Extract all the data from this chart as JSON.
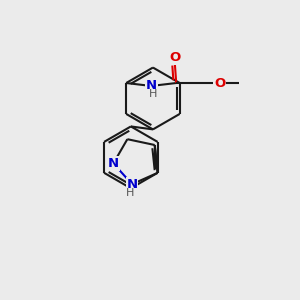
{
  "bg_color": "#ebebeb",
  "bond_color": "#1a1a1a",
  "n_color": "#0000cd",
  "o_color": "#dd0000",
  "h_color": "#555555",
  "bond_width": 1.5,
  "font_size": 9.5,
  "fig_size": [
    3.0,
    3.0
  ],
  "dpi": 100,
  "xlim": [
    0,
    10
  ],
  "ylim": [
    0,
    10
  ]
}
